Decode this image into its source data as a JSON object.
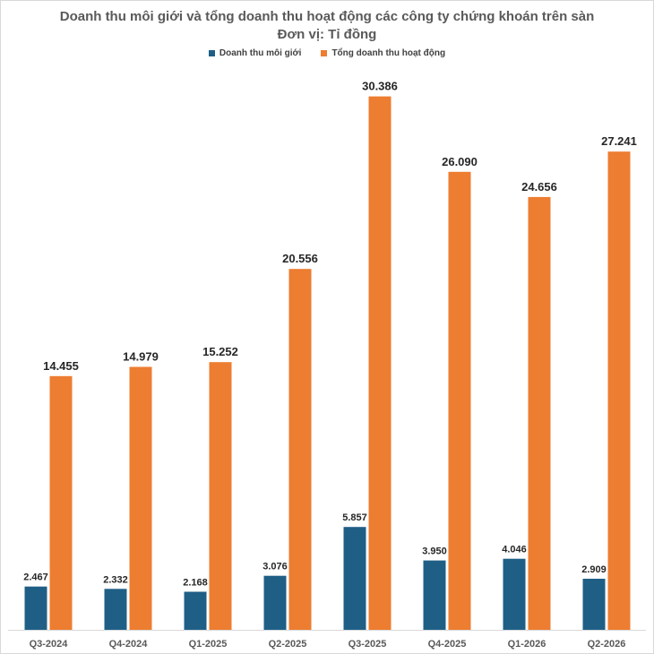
{
  "chart_data": {
    "type": "bar",
    "title": "Doanh thu môi giới và tổng doanh thu hoạt động các công ty chứng khoán trên sàn",
    "subtitle": "Đơn vị: Tỉ đồng",
    "categories": [
      "Q3-2024",
      "Q4-2024",
      "Q1-2025",
      "Q2-2025",
      "Q3-2025",
      "Q4-2025",
      "Q1-2026",
      "Q2-2026"
    ],
    "series": [
      {
        "name": "Doanh thu môi giới",
        "color": "#1f5f86",
        "values": [
          2467,
          2332,
          2168,
          3076,
          5857,
          3950,
          4046,
          2909
        ],
        "labels": [
          "2.467",
          "2.332",
          "2.168",
          "3.076",
          "5.857",
          "3.950",
          "4.046",
          "2.909"
        ]
      },
      {
        "name": "Tổng doanh thu hoạt động",
        "color": "#ed7d31",
        "values": [
          14455,
          14979,
          15252,
          20556,
          30386,
          26090,
          24656,
          27241
        ],
        "labels": [
          "14.455",
          "14.979",
          "15.252",
          "20.556",
          "30.386",
          "26.090",
          "24.656",
          "27.241"
        ]
      }
    ],
    "ylim": [
      0,
      32000
    ],
    "grid": false,
    "legend_position": "top"
  }
}
